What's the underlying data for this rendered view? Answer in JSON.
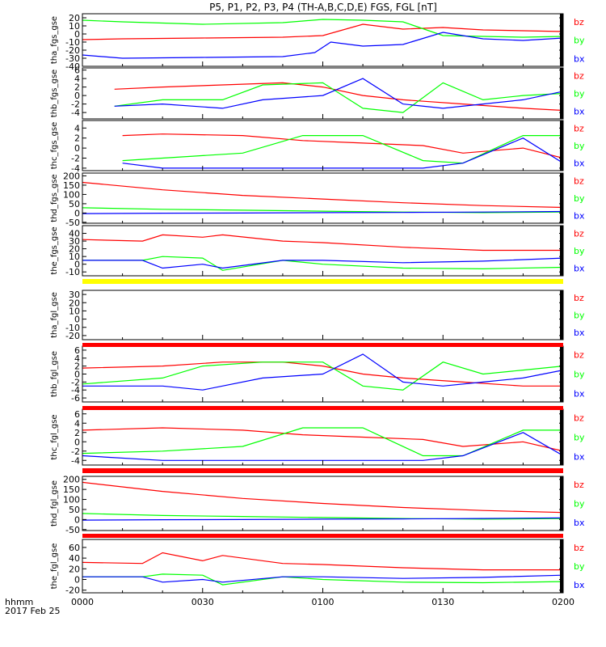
{
  "title": "P5, P1, P2, P3, P4 (TH-A,B,C,D,E) FGS, FGL [nT]",
  "footer": {
    "format_label": "hhmm",
    "date_label": "2017 Feb 25"
  },
  "colors": {
    "bx": "#0000ff",
    "by": "#00ff00",
    "bz": "#ff0000",
    "no_data_bar": "#ff0000",
    "flag_bar": "#ffff00"
  },
  "chart_data": {
    "type": "line",
    "x_unit": "UT hhmm",
    "x_range": [
      "0000",
      "0200"
    ],
    "x_ticks": [
      "0000",
      "0030",
      "0100",
      "0130",
      "0200"
    ],
    "panels": [
      {
        "name": "tha_fgs_gse",
        "ylim": [
          -40,
          25
        ],
        "yticks": [
          "20",
          "10",
          "0",
          "-10",
          "-20",
          "-30",
          "-40"
        ],
        "grid": false,
        "legend": [
          "bz",
          "by",
          "bx"
        ],
        "series": [
          {
            "name": "bz",
            "x": [
              0,
              10,
              30,
              50,
              60,
              70,
              80,
              90,
              100,
              110,
              120
            ],
            "y": [
              -7,
              -6,
              -5,
              -4,
              -2,
              12,
              6,
              8,
              5,
              4,
              3
            ]
          },
          {
            "name": "by",
            "x": [
              0,
              10,
              30,
              50,
              55,
              60,
              70,
              80,
              90,
              100,
              110,
              120
            ],
            "y": [
              17,
              15,
              12,
              14,
              16,
              18,
              17,
              15,
              -2,
              -3,
              -4,
              -3
            ]
          },
          {
            "name": "bx",
            "x": [
              0,
              10,
              30,
              50,
              58,
              62,
              70,
              80,
              90,
              100,
              110,
              120
            ],
            "y": [
              -26,
              -30,
              -29,
              -28,
              -23,
              -10,
              -15,
              -13,
              2,
              -6,
              -8,
              -5
            ]
          }
        ]
      },
      {
        "name": "thb_fgs_gse",
        "ylim": [
          -5.5,
          6.5
        ],
        "yticks": [
          "6",
          "4",
          "2",
          "0",
          "-2",
          "-4"
        ],
        "grid": false,
        "legend": [
          "bz",
          "by",
          "bx"
        ],
        "series": [
          {
            "name": "bz",
            "x": [
              8,
              20,
              35,
              50,
              60,
              70,
              80,
              95,
              110,
              120
            ],
            "y": [
              1.5,
              2,
              2.5,
              3,
              2,
              0,
              -1,
              -2,
              -3,
              -3.5
            ]
          },
          {
            "name": "by",
            "x": [
              8,
              20,
              35,
              45,
              60,
              70,
              80,
              90,
              100,
              110,
              120
            ],
            "y": [
              -2.5,
              -1,
              -1,
              2.5,
              3,
              -3,
              -4,
              3,
              -1,
              0,
              0.5
            ]
          },
          {
            "name": "bx",
            "x": [
              8,
              20,
              35,
              45,
              60,
              70,
              80,
              90,
              100,
              110,
              120
            ],
            "y": [
              -2.5,
              -2,
              -3,
              -1,
              0,
              4,
              -2,
              -3,
              -2,
              -1,
              1
            ]
          }
        ]
      },
      {
        "name": "thc_fgs_gse",
        "ylim": [
          -4.5,
          5.5
        ],
        "yticks": [
          "4",
          "2",
          "0",
          "-2",
          "-4"
        ],
        "grid": false,
        "legend": [
          "bz",
          "by",
          "bx"
        ],
        "series": [
          {
            "name": "bz",
            "x": [
              10,
              20,
              40,
              55,
              70,
              85,
              95,
              110,
              120
            ],
            "y": [
              2.5,
              2.8,
              2.5,
              1.5,
              1,
              0.5,
              -1,
              0,
              -2
            ]
          },
          {
            "name": "by",
            "x": [
              10,
              20,
              40,
              55,
              70,
              85,
              95,
              110,
              120
            ],
            "y": [
              -2.5,
              -2,
              -1,
              2.5,
              2.5,
              -2.5,
              -3,
              2.5,
              2.5
            ]
          },
          {
            "name": "bx",
            "x": [
              10,
              20,
              40,
              55,
              70,
              85,
              95,
              110,
              120
            ],
            "y": [
              -3,
              -4,
              -4,
              -4,
              -4,
              -4,
              -3,
              2,
              -3
            ]
          }
        ]
      },
      {
        "name": "thd_fgs_gse",
        "ylim": [
          -55,
          215
        ],
        "yticks": [
          "200",
          "150",
          "100",
          "50",
          "0",
          "-50"
        ],
        "grid": false,
        "legend": [
          "bz",
          "by",
          "bx"
        ],
        "series": [
          {
            "name": "bz",
            "x": [
              0,
              20,
              40,
              60,
              80,
              100,
              120
            ],
            "y": [
              165,
              125,
              95,
              75,
              55,
              40,
              30
            ]
          },
          {
            "name": "by",
            "x": [
              0,
              20,
              40,
              60,
              80,
              100,
              120
            ],
            "y": [
              28,
              20,
              15,
              10,
              5,
              2,
              5
            ]
          },
          {
            "name": "bx",
            "x": [
              0,
              20,
              40,
              60,
              80,
              100,
              120
            ],
            "y": [
              -3,
              -1,
              0,
              2,
              3,
              5,
              8
            ]
          }
        ]
      },
      {
        "name": "the_fgs_gse",
        "ylim": [
          -15,
          50
        ],
        "yticks": [
          "40",
          "30",
          "20",
          "10",
          "0",
          "-10"
        ],
        "grid": false,
        "legend": [
          "bz",
          "by",
          "bx"
        ],
        "series": [
          {
            "name": "bz",
            "x": [
              0,
              15,
              20,
              30,
              35,
              50,
              60,
              80,
              100,
              120
            ],
            "y": [
              32,
              30,
              38,
              35,
              38,
              30,
              28,
              22,
              18,
              18
            ]
          },
          {
            "name": "by",
            "x": [
              0,
              15,
              20,
              30,
              35,
              50,
              60,
              80,
              100,
              120
            ],
            "y": [
              5,
              5,
              10,
              8,
              -8,
              5,
              0,
              -5,
              -6,
              -4
            ]
          },
          {
            "name": "bx",
            "x": [
              0,
              15,
              20,
              30,
              35,
              50,
              60,
              80,
              100,
              120
            ],
            "y": [
              5,
              5,
              -5,
              0,
              -5,
              5,
              5,
              2,
              4,
              8
            ]
          }
        ]
      },
      {
        "name": "tha_fgl_gse",
        "ylim": [
          -25,
          35
        ],
        "yticks": [
          "30",
          "20",
          "10",
          "0",
          "-10",
          "-20"
        ],
        "grid": false,
        "legend": [
          "bz",
          "by",
          "bx"
        ],
        "series": []
      },
      {
        "name": "thb_fgl_gse",
        "ylim": [
          -7,
          7
        ],
        "yticks": [
          "6",
          "4",
          "2",
          "0",
          "-2",
          "-4",
          "-6"
        ],
        "grid": false,
        "legend": [
          "bz",
          "by",
          "bx"
        ],
        "series": [
          {
            "name": "bz",
            "x": [
              0,
              20,
              35,
              50,
              60,
              70,
              80,
              95,
              110,
              120
            ],
            "y": [
              1.5,
              2,
              3,
              3,
              2,
              0,
              -1,
              -2,
              -3,
              -3
            ]
          },
          {
            "name": "by",
            "x": [
              0,
              20,
              30,
              45,
              60,
              70,
              80,
              90,
              100,
              110,
              120
            ],
            "y": [
              -2.5,
              -1,
              2,
              3,
              3,
              -3,
              -4,
              3,
              0,
              1,
              2
            ]
          },
          {
            "name": "bx",
            "x": [
              0,
              20,
              30,
              45,
              60,
              70,
              80,
              90,
              100,
              110,
              120
            ],
            "y": [
              -3,
              -3,
              -4,
              -1,
              0,
              5,
              -2,
              -3,
              -2,
              -1,
              1
            ]
          }
        ]
      },
      {
        "name": "thc_fgl_gse",
        "ylim": [
          -5,
          7
        ],
        "yticks": [
          "6",
          "4",
          "2",
          "0",
          "-2",
          "-4"
        ],
        "grid": false,
        "legend": [
          "bz",
          "by",
          "bx"
        ],
        "series": [
          {
            "name": "bz",
            "x": [
              0,
              20,
              40,
              55,
              70,
              85,
              95,
              110,
              120
            ],
            "y": [
              2.5,
              3,
              2.5,
              1.5,
              1,
              0.5,
              -1,
              0,
              -2
            ]
          },
          {
            "name": "by",
            "x": [
              0,
              20,
              40,
              55,
              70,
              85,
              95,
              110,
              120
            ],
            "y": [
              -2.5,
              -2,
              -1,
              3,
              3,
              -3,
              -3,
              2.5,
              2.5
            ]
          },
          {
            "name": "bx",
            "x": [
              0,
              20,
              40,
              55,
              70,
              85,
              95,
              110,
              120
            ],
            "y": [
              -3,
              -4,
              -4,
              -4,
              -4,
              -4,
              -3,
              2,
              -3
            ]
          }
        ]
      },
      {
        "name": "thd_fgl_gse",
        "ylim": [
          -55,
          215
        ],
        "yticks": [
          "200",
          "150",
          "100",
          "50",
          "0",
          "-50"
        ],
        "grid": false,
        "legend": [
          "bz",
          "by",
          "bx"
        ],
        "series": [
          {
            "name": "bz",
            "x": [
              0,
              20,
              40,
              60,
              80,
              100,
              120
            ],
            "y": [
              185,
              140,
              105,
              80,
              60,
              45,
              35
            ]
          },
          {
            "name": "by",
            "x": [
              0,
              20,
              40,
              60,
              80,
              100,
              120
            ],
            "y": [
              30,
              20,
              15,
              10,
              5,
              2,
              5
            ]
          },
          {
            "name": "bx",
            "x": [
              0,
              20,
              40,
              60,
              80,
              100,
              120
            ],
            "y": [
              -3,
              -1,
              0,
              2,
              3,
              5,
              8
            ]
          }
        ]
      },
      {
        "name": "the_fgl_gse",
        "ylim": [
          -25,
          75
        ],
        "yticks": [
          "60",
          "40",
          "20",
          "0",
          "-20"
        ],
        "grid": false,
        "legend": [
          "bz",
          "by",
          "bx"
        ],
        "series": [
          {
            "name": "bz",
            "x": [
              0,
              15,
              20,
              30,
              35,
              50,
              60,
              80,
              100,
              120
            ],
            "y": [
              32,
              30,
              50,
              35,
              45,
              30,
              28,
              22,
              18,
              18
            ]
          },
          {
            "name": "by",
            "x": [
              0,
              15,
              20,
              30,
              35,
              50,
              60,
              80,
              100,
              120
            ],
            "y": [
              5,
              5,
              10,
              8,
              -10,
              5,
              0,
              -5,
              -6,
              -4
            ]
          },
          {
            "name": "bx",
            "x": [
              0,
              15,
              20,
              30,
              35,
              50,
              60,
              80,
              100,
              120
            ],
            "y": [
              5,
              5,
              -5,
              0,
              -5,
              5,
              5,
              2,
              4,
              8
            ]
          }
        ]
      }
    ]
  }
}
